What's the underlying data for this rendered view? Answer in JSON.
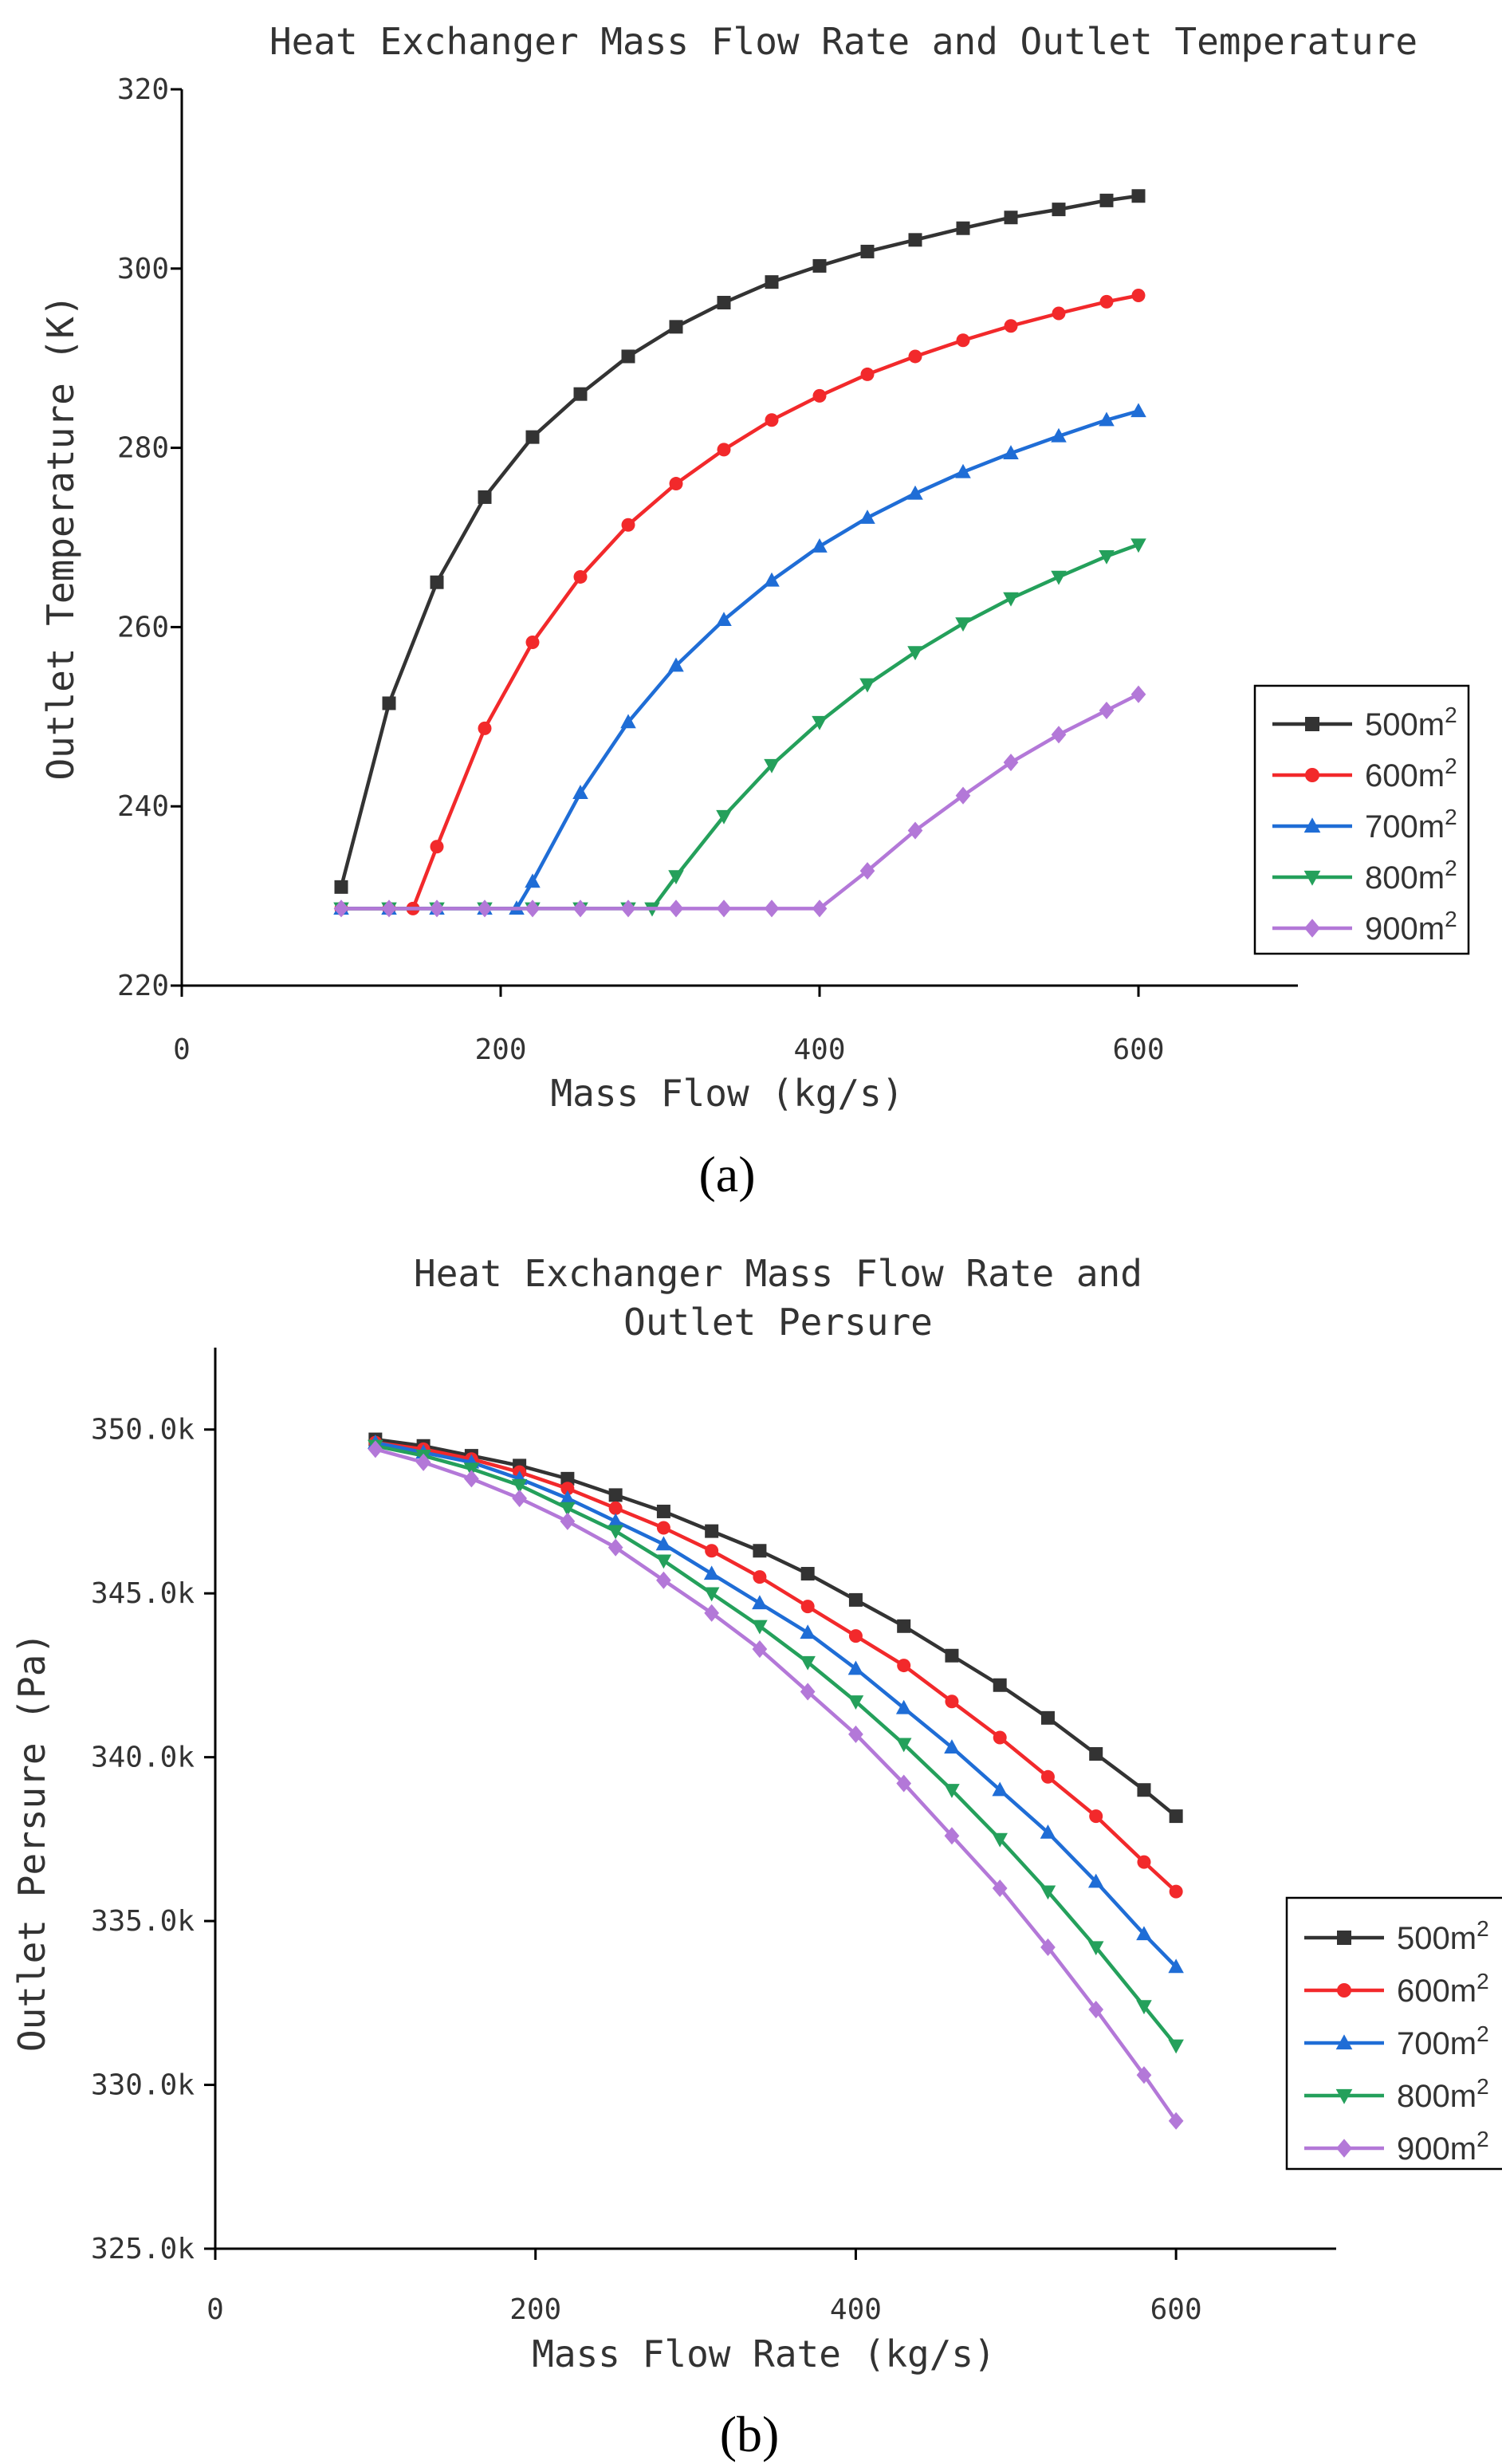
{
  "chart_data": [
    {
      "type": "line",
      "panel_label": "(a)",
      "title": "Heat Exchanger Mass Flow Rate and Outlet Temperature",
      "xlabel": "Mass Flow (kg/s)",
      "ylabel": "Outlet Temperature (K)",
      "xlim": [
        0,
        700
      ],
      "ylim": [
        220,
        320
      ],
      "x_ticks": [
        0,
        200,
        400,
        600
      ],
      "y_ticks": [
        220,
        240,
        260,
        280,
        300,
        320
      ],
      "y_tick_labels": [
        "220",
        "240",
        "260",
        "280",
        "300",
        "320"
      ],
      "x_tick_labels": [
        "0",
        "200",
        "400",
        "600"
      ],
      "legend_position": "right",
      "series": [
        {
          "name": "500",
          "marker": "square",
          "color": "#333333",
          "x": [
            100,
            130,
            160,
            190,
            220,
            250,
            280,
            310,
            340,
            370,
            400,
            430,
            460,
            490,
            520,
            550,
            580,
            600
          ],
          "values": [
            231.0,
            251.5,
            265.0,
            274.5,
            281.2,
            286.0,
            290.2,
            293.5,
            296.2,
            298.5,
            300.3,
            301.9,
            303.2,
            304.5,
            305.7,
            306.6,
            307.6,
            308.1
          ]
        },
        {
          "name": "600",
          "marker": "circle",
          "color": "#f2292b",
          "x": [
            100,
            130,
            145,
            160,
            190,
            220,
            250,
            280,
            310,
            340,
            370,
            400,
            430,
            460,
            490,
            520,
            550,
            580,
            600
          ],
          "values": [
            228.6,
            228.6,
            228.6,
            235.5,
            248.7,
            258.3,
            265.6,
            271.4,
            276.0,
            279.8,
            283.1,
            285.8,
            288.2,
            290.2,
            292.0,
            293.6,
            295.0,
            296.3,
            297.0
          ]
        },
        {
          "name": "700",
          "marker": "triangle-up",
          "color": "#1f6dd6",
          "x": [
            100,
            130,
            160,
            190,
            210,
            220,
            250,
            280,
            310,
            340,
            370,
            400,
            430,
            460,
            490,
            520,
            550,
            580,
            600
          ],
          "values": [
            228.6,
            228.6,
            228.6,
            228.6,
            228.6,
            231.6,
            241.5,
            249.4,
            255.7,
            260.8,
            265.2,
            269.0,
            272.2,
            274.9,
            277.3,
            279.4,
            281.3,
            283.1,
            284.1
          ]
        },
        {
          "name": "800",
          "marker": "triangle-down",
          "color": "#24a05b",
          "x": [
            100,
            130,
            160,
            190,
            220,
            250,
            280,
            295,
            310,
            340,
            370,
            400,
            430,
            460,
            490,
            520,
            550,
            580,
            600
          ],
          "values": [
            228.6,
            228.6,
            228.6,
            228.6,
            228.6,
            228.6,
            228.6,
            228.6,
            232.2,
            238.9,
            244.6,
            249.4,
            253.6,
            257.2,
            260.4,
            263.2,
            265.6,
            267.9,
            269.2
          ]
        },
        {
          "name": "900",
          "marker": "diamond",
          "color": "#b378d8",
          "x": [
            100,
            130,
            160,
            190,
            220,
            250,
            280,
            310,
            340,
            370,
            400,
            430,
            460,
            490,
            520,
            550,
            580,
            600
          ],
          "values": [
            228.6,
            228.6,
            228.6,
            228.6,
            228.6,
            228.6,
            228.6,
            228.6,
            228.6,
            228.6,
            228.6,
            232.8,
            237.3,
            241.2,
            244.9,
            248.0,
            250.7,
            252.5
          ]
        }
      ]
    },
    {
      "type": "line",
      "panel_label": "(b)",
      "title": "Heat Exchanger Mass Flow Rate and",
      "title_line2": "Outlet Persure",
      "xlabel": "Mass Flow Rate (kg/s)",
      "ylabel": "Outlet Persure (Pa)",
      "xlim": [
        0,
        700
      ],
      "ylim": [
        325,
        352.5
      ],
      "x_ticks": [
        0,
        200,
        400,
        600
      ],
      "y_ticks": [
        325,
        330,
        335,
        340,
        345,
        350
      ],
      "y_tick_labels": [
        "325.0k",
        "330.0k",
        "335.0k",
        "340.0k",
        "345.0k",
        "350.0k"
      ],
      "x_tick_labels": [
        "0",
        "200",
        "400",
        "600"
      ],
      "legend_position": "right",
      "series": [
        {
          "name": "500",
          "marker": "square",
          "color": "#333333",
          "x": [
            100,
            130,
            160,
            190,
            220,
            250,
            280,
            310,
            340,
            370,
            400,
            430,
            460,
            490,
            520,
            550,
            580,
            600
          ],
          "values": [
            349.7,
            349.5,
            349.2,
            348.9,
            348.5,
            348.0,
            347.5,
            346.9,
            346.3,
            345.6,
            344.8,
            344.0,
            343.1,
            342.2,
            341.2,
            340.1,
            339.0,
            338.2
          ]
        },
        {
          "name": "600",
          "marker": "circle",
          "color": "#f2292b",
          "x": [
            100,
            130,
            160,
            190,
            220,
            250,
            280,
            310,
            340,
            370,
            400,
            430,
            460,
            490,
            520,
            550,
            580,
            600
          ],
          "values": [
            349.6,
            349.4,
            349.1,
            348.7,
            348.2,
            347.6,
            347.0,
            346.3,
            345.5,
            344.6,
            343.7,
            342.8,
            341.7,
            340.6,
            339.4,
            338.2,
            336.8,
            335.9
          ]
        },
        {
          "name": "700",
          "marker": "triangle-up",
          "color": "#1f6dd6",
          "x": [
            100,
            130,
            160,
            190,
            220,
            250,
            280,
            310,
            340,
            370,
            400,
            430,
            460,
            490,
            520,
            550,
            580,
            600
          ],
          "values": [
            349.6,
            349.3,
            349.0,
            348.5,
            347.9,
            347.2,
            346.5,
            345.6,
            344.7,
            343.8,
            342.7,
            341.5,
            340.3,
            339.0,
            337.7,
            336.2,
            334.6,
            333.6
          ]
        },
        {
          "name": "800",
          "marker": "triangle-down",
          "color": "#24a05b",
          "x": [
            100,
            130,
            160,
            190,
            220,
            250,
            280,
            310,
            340,
            370,
            400,
            430,
            460,
            490,
            520,
            550,
            580,
            600
          ],
          "values": [
            349.5,
            349.2,
            348.8,
            348.3,
            347.6,
            346.9,
            346.0,
            345.0,
            344.0,
            342.9,
            341.7,
            340.4,
            339.0,
            337.5,
            335.9,
            334.2,
            332.4,
            331.2
          ]
        },
        {
          "name": "900",
          "marker": "diamond",
          "color": "#b378d8",
          "x": [
            100,
            130,
            160,
            190,
            220,
            250,
            280,
            310,
            340,
            370,
            400,
            430,
            460,
            490,
            520,
            550,
            580,
            600
          ],
          "values": [
            349.4,
            349.0,
            348.5,
            347.9,
            347.2,
            346.4,
            345.4,
            344.4,
            343.3,
            342.0,
            340.7,
            339.2,
            337.6,
            336.0,
            334.2,
            332.3,
            330.3,
            328.9
          ]
        }
      ]
    }
  ]
}
